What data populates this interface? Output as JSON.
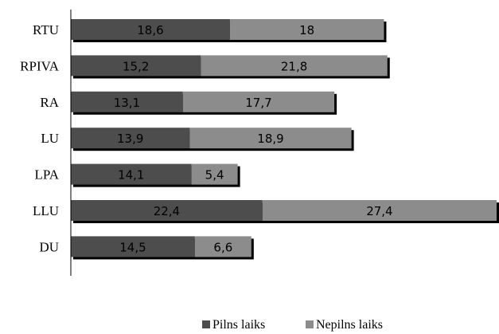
{
  "chart_data": {
    "type": "bar",
    "orientation": "horizontal",
    "stacked": true,
    "categories": [
      "RTU",
      "RPIVA",
      "RA",
      "LU",
      "LPA",
      "LLU",
      "DU"
    ],
    "series": [
      {
        "name": "Pilns laiks",
        "values": [
          18.6,
          15.2,
          13.1,
          13.9,
          14.1,
          22.4,
          14.5
        ],
        "labels": [
          "18,6",
          "15,2",
          "13,1",
          "13,9",
          "14,1",
          "22,4",
          "14,5"
        ],
        "color": "#4d4d4d"
      },
      {
        "name": "Nepilns laiks",
        "values": [
          18,
          21.8,
          17.7,
          18.9,
          5.4,
          27.4,
          6.6
        ],
        "labels": [
          "18",
          "21,8",
          "17,7",
          "18,9",
          "5,4",
          "27,4",
          "6,6"
        ],
        "color": "#8c8c8c"
      }
    ],
    "title": "",
    "xlabel": "",
    "ylabel": "",
    "xlim": [
      0,
      50
    ],
    "grid": false,
    "legend_position": "bottom",
    "bar_shadow": true
  }
}
